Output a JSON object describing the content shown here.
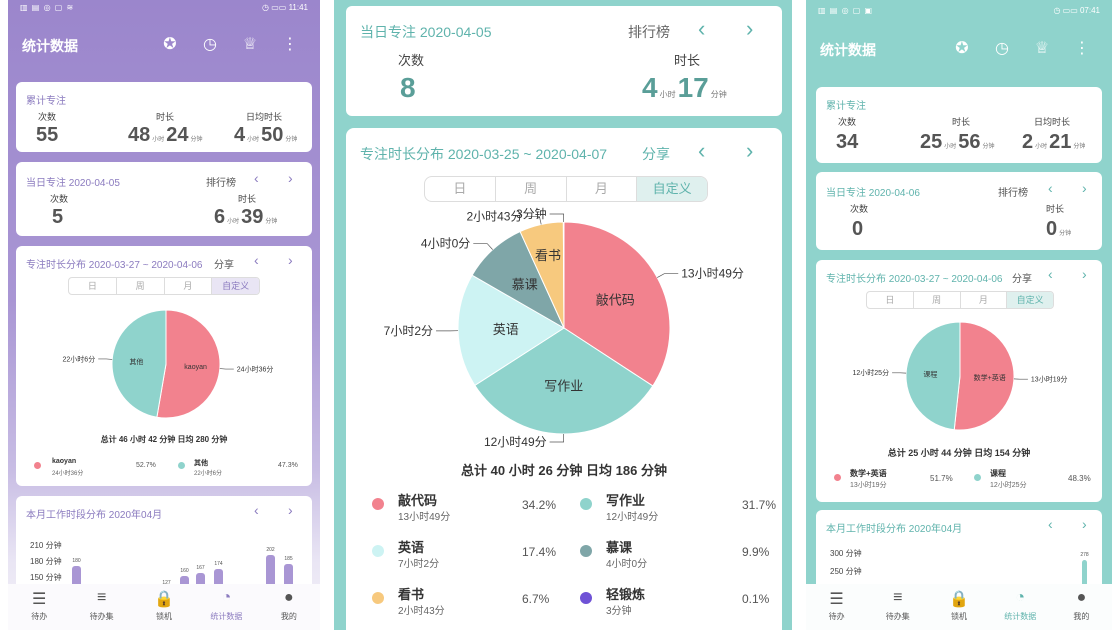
{
  "phone1": {
    "status_left": "▥ ▤ ◎ ▢ ≋",
    "status_right": "◷ ▭▭ 11:41",
    "title": "统计数据",
    "cumulative": {
      "title": "累计专注",
      "count_label": "次数",
      "count_value": "55",
      "duration_label": "时长",
      "dur_hours": "48",
      "dur_hours_unit": "小时",
      "dur_minutes": "24",
      "dur_minutes_unit": "分钟",
      "daily_label": "日均时长",
      "daily_hours": "4",
      "daily_hours_unit": "小时",
      "daily_minutes": "50",
      "daily_minutes_unit": "分钟"
    },
    "today": {
      "title": "当日专注  2020-04-05",
      "ranking_label": "排行榜",
      "count_label": "次数",
      "count_value": "5",
      "duration_label": "时长",
      "dur_hours": "6",
      "dur_hours_unit": "小时",
      "dur_minutes": "39",
      "dur_minutes_unit": "分钟"
    },
    "distribution": {
      "title": "专注时长分布  2020-03-27 ~ 2020-04-06",
      "share_label": "分享",
      "tabs": [
        "日",
        "周",
        "月",
        "自定义"
      ],
      "active_tab": 3,
      "summary": "总计 46 小时 42 分钟 日均 280 分钟",
      "legend": [
        {
          "name": "kaoyan",
          "time": "24小时36分",
          "percent": "52.7%",
          "color": "#f2828e"
        },
        {
          "name": "其他",
          "time": "22小时6分",
          "percent": "47.3%",
          "color": "#8fd3cc"
        }
      ]
    },
    "chart_data": {
      "type": "pie",
      "slices": [
        {
          "label": "kaoyan",
          "value_label": "24小时36分",
          "percent": 52.7,
          "color": "#f2828e"
        },
        {
          "label": "其他",
          "value_label": "22小时6分",
          "percent": 47.3,
          "color": "#8fd3cc"
        }
      ]
    },
    "monthly": {
      "title": "本月工作时段分布  2020年04月",
      "y_ticks": [
        "210 分钟",
        "180 分钟",
        "150 分钟"
      ],
      "bar_values": [
        180,
        127,
        160,
        167,
        174,
        202,
        185
      ],
      "bar_value_labels": [
        "180",
        "127",
        "160",
        "167",
        "174",
        "202",
        "185"
      ],
      "bar_color": "#a996d4"
    },
    "nav": [
      {
        "icon": "☰",
        "label": "待办"
      },
      {
        "icon": "≡",
        "label": "待办集"
      },
      {
        "icon": "🔒",
        "label": "锁机"
      },
      {
        "icon": "◔",
        "label": "统计数据"
      },
      {
        "icon": "●",
        "label": "我的"
      }
    ],
    "nav_active": 3
  },
  "phone2": {
    "today": {
      "title": "当日专注  2020-04-05",
      "ranking_label": "排行榜",
      "count_label": "次数",
      "count_value": "8",
      "duration_label": "时长",
      "dur_hours": "4",
      "dur_hours_unit": "小时",
      "dur_minutes": "17",
      "dur_minutes_unit": "分钟"
    },
    "distribution": {
      "title": "专注时长分布  2020-03-25 ~ 2020-04-07",
      "share_label": "分享",
      "tabs": [
        "日",
        "周",
        "月",
        "自定义"
      ],
      "active_tab": 3,
      "summary": "总计 40 小时 26 分钟 日均 186 分钟",
      "legend": [
        {
          "name": "敲代码",
          "time": "13小时49分",
          "percent": "34.2%",
          "color": "#f2828e"
        },
        {
          "name": "写作业",
          "time": "12小时49分",
          "percent": "31.7%",
          "color": "#8fd3cc"
        },
        {
          "name": "英语",
          "time": "7小时2分",
          "percent": "17.4%",
          "color": "#cdf3f3"
        },
        {
          "name": "慕课",
          "time": "4小时0分",
          "percent": "9.9%",
          "color": "#7fa6a8"
        },
        {
          "name": "看书",
          "time": "2小时43分",
          "percent": "6.7%",
          "color": "#f7c97e"
        },
        {
          "name": "轻锻炼",
          "time": "3分钟",
          "percent": "0.1%",
          "color": "#6f52d6"
        }
      ]
    },
    "chart_data": {
      "type": "pie",
      "slices": [
        {
          "label": "敲代码",
          "value_label": "13小时49分",
          "percent": 34.2,
          "color": "#f2828e"
        },
        {
          "label": "写作业",
          "value_label": "12小时49分",
          "percent": 31.7,
          "color": "#8fd3cc"
        },
        {
          "label": "英语",
          "value_label": "7小时2分",
          "percent": 17.4,
          "color": "#cdf3f3"
        },
        {
          "label": "慕课",
          "value_label": "4小时0分",
          "percent": 9.9,
          "color": "#7fa6a8"
        },
        {
          "label": "看书",
          "value_label": "2小时43分",
          "percent": 6.7,
          "color": "#f7c97e"
        },
        {
          "label": "轻锻炼",
          "value_label": "3分钟",
          "percent": 0.1,
          "color": "#6f52d6"
        }
      ]
    }
  },
  "phone3": {
    "status_left": "▥ ▤ ◎ ▢ ▣",
    "status_right": "◷ ▭▭ 07:41",
    "title": "统计数据",
    "cumulative": {
      "title": "累计专注",
      "count_label": "次数",
      "count_value": "34",
      "duration_label": "时长",
      "dur_hours": "25",
      "dur_hours_unit": "小时",
      "dur_minutes": "56",
      "dur_minutes_unit": "分钟",
      "daily_label": "日均时长",
      "daily_hours": "2",
      "daily_hours_unit": "小时",
      "daily_minutes": "21",
      "daily_minutes_unit": "分钟"
    },
    "today": {
      "title": "当日专注  2020-04-06",
      "ranking_label": "排行榜",
      "count_label": "次数",
      "count_value": "0",
      "duration_label": "时长",
      "dur_minutes": "0",
      "dur_minutes_unit": "分钟"
    },
    "distribution": {
      "title": "专注时长分布  2020-03-27 ~ 2020-04-06",
      "share_label": "分享",
      "tabs": [
        "日",
        "周",
        "月",
        "自定义"
      ],
      "active_tab": 3,
      "summary": "总计 25 小时 44 分钟 日均 154 分钟",
      "legend": [
        {
          "name": "数学+英语",
          "time": "13小时19分",
          "percent": "51.7%",
          "color": "#f2828e"
        },
        {
          "name": "课程",
          "time": "12小时25分",
          "percent": "48.3%",
          "color": "#8fd3cc"
        }
      ]
    },
    "chart_data": {
      "type": "pie",
      "slices": [
        {
          "label": "数学+英语",
          "value_label": "13小时19分",
          "percent": 51.7,
          "color": "#f2828e"
        },
        {
          "label": "课程",
          "value_label": "12小时25分",
          "percent": 48.3,
          "color": "#8fd3cc"
        }
      ]
    },
    "monthly": {
      "title": "本月工作时段分布  2020年04月",
      "y_ticks": [
        "300 分钟",
        "250 分钟"
      ],
      "bar_values": [
        278
      ],
      "bar_value_labels": [
        "278"
      ],
      "bar_color": "#8fd3cc"
    },
    "nav": [
      {
        "icon": "☰",
        "label": "待办"
      },
      {
        "icon": "≡",
        "label": "待办集"
      },
      {
        "icon": "🔒",
        "label": "锁机"
      },
      {
        "icon": "◔",
        "label": "统计数据"
      },
      {
        "icon": "●",
        "label": "我的"
      }
    ],
    "nav_active": 3
  },
  "icons": {
    "medal": "medal-icon",
    "clock": "clock-icon",
    "trophy": "trophy-icon",
    "more": "more-vert-icon",
    "prev": "‹",
    "next": "›"
  }
}
